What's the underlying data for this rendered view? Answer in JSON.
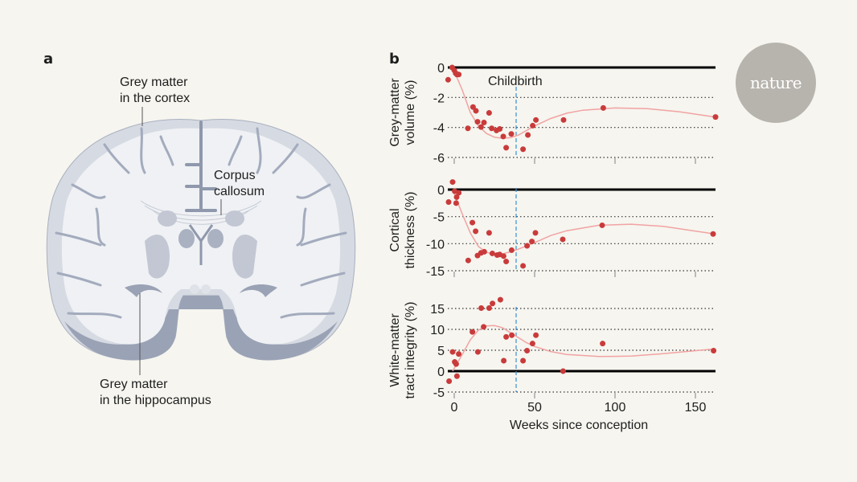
{
  "panel_a": {
    "letter": "a",
    "labels": {
      "cortex": [
        "Grey matter",
        "in the cortex"
      ],
      "corpus": [
        "Corpus",
        "callosum"
      ],
      "hippocampus": [
        "Grey matter",
        "in the hippocampus"
      ]
    },
    "colors": {
      "grey_matter": "#d6dae2",
      "white_matter": "#eff1f4",
      "dark": "#8f98ac"
    }
  },
  "panel_b": {
    "letter": "b"
  },
  "logo": {
    "text": "nature"
  },
  "colors": {
    "points": "#c93b3b",
    "trend": "#f1a3a3",
    "childbirth_line": "#3a8fd3",
    "zero_line": "#000000",
    "background": "#f6f5ef"
  },
  "chart_data": [
    {
      "type": "scatter",
      "ylabel": [
        "Grey-matter",
        "volume (%)"
      ],
      "xlim": [
        -5,
        163
      ],
      "ylim": [
        -6,
        0
      ],
      "yticks": [
        "0",
        "-2",
        "-4",
        "-6"
      ],
      "ytick_values": [
        0,
        -2,
        -4,
        -6
      ],
      "grid": "dotted horizontal",
      "annotation": {
        "text": "Childbirth",
        "x": 38.5
      },
      "points": [
        [
          -3.8,
          -0.82
        ],
        [
          -1.3,
          0
        ],
        [
          0,
          -0.18
        ],
        [
          0.9,
          -0.38
        ],
        [
          1.7,
          -0.47
        ],
        [
          2.8,
          -0.47
        ],
        [
          8.5,
          -4.06
        ],
        [
          11.7,
          -2.64
        ],
        [
          13.5,
          -2.89
        ],
        [
          14.5,
          -3.62
        ],
        [
          16.7,
          -3.97
        ],
        [
          18.5,
          -3.67
        ],
        [
          21.7,
          -3.03
        ],
        [
          23.3,
          -4.06
        ],
        [
          26.3,
          -4.2
        ],
        [
          28.3,
          -4.1
        ],
        [
          30.5,
          -4.6
        ],
        [
          32.3,
          -5.35
        ],
        [
          35.5,
          -4.43
        ],
        [
          42.8,
          -5.45
        ],
        [
          45.8,
          -4.5
        ],
        [
          48.8,
          -3.88
        ],
        [
          50.8,
          -3.5
        ],
        [
          68,
          -3.5
        ],
        [
          92.7,
          -2.7
        ],
        [
          162.5,
          -3.3
        ]
      ],
      "trend": [
        [
          -1,
          0
        ],
        [
          5,
          -1.5
        ],
        [
          10,
          -3.0
        ],
        [
          15,
          -3.9
        ],
        [
          20,
          -4.4
        ],
        [
          25,
          -4.65
        ],
        [
          30,
          -4.72
        ],
        [
          35,
          -4.68
        ],
        [
          40,
          -4.5
        ],
        [
          45,
          -4.2
        ],
        [
          50,
          -3.9
        ],
        [
          60,
          -3.4
        ],
        [
          70,
          -3.05
        ],
        [
          80,
          -2.85
        ],
        [
          100,
          -2.7
        ],
        [
          120,
          -2.75
        ],
        [
          140,
          -2.95
        ],
        [
          162,
          -3.3
        ]
      ]
    },
    {
      "type": "scatter",
      "ylabel": [
        "Cortical",
        "thickness (%)"
      ],
      "xlim": [
        -5,
        163
      ],
      "ylim": [
        -15,
        0
      ],
      "yticks": [
        "0",
        "-5",
        "-10",
        "-15"
      ],
      "ytick_values": [
        0,
        -5,
        -10,
        -15
      ],
      "grid": "dotted horizontal",
      "annotation": {
        "x": 38.5
      },
      "points": [
        [
          -3.5,
          -2.3
        ],
        [
          -1,
          1.4
        ],
        [
          0.3,
          -0.3
        ],
        [
          1.5,
          -1.4
        ],
        [
          1.2,
          -2.5
        ],
        [
          2.8,
          -0.6
        ],
        [
          8.7,
          -13.1
        ],
        [
          11.3,
          -6.1
        ],
        [
          13.3,
          -7.7
        ],
        [
          14.5,
          -12.2
        ],
        [
          16.7,
          -11.7
        ],
        [
          18.7,
          -11.5
        ],
        [
          21.7,
          -8.0
        ],
        [
          23.7,
          -11.8
        ],
        [
          26.7,
          -12.1
        ],
        [
          28.3,
          -12.0
        ],
        [
          30.7,
          -12.3
        ],
        [
          32.3,
          -13.3
        ],
        [
          35.7,
          -11.2
        ],
        [
          42.8,
          -14.1
        ],
        [
          45.3,
          -10.4
        ],
        [
          48.3,
          -9.6
        ],
        [
          50.5,
          -8.0
        ],
        [
          67.5,
          -9.2
        ],
        [
          92,
          -6.6
        ],
        [
          161,
          -8.2
        ]
      ],
      "trend": [
        [
          -1,
          0
        ],
        [
          5,
          -4.5
        ],
        [
          10,
          -8
        ],
        [
          15,
          -10.5
        ],
        [
          20,
          -11.6
        ],
        [
          25,
          -12
        ],
        [
          30,
          -11.9
        ],
        [
          35,
          -11.5
        ],
        [
          40,
          -11
        ],
        [
          50,
          -9.8
        ],
        [
          60,
          -8.5
        ],
        [
          70,
          -7.6
        ],
        [
          90,
          -6.6
        ],
        [
          110,
          -6.4
        ],
        [
          130,
          -6.8
        ],
        [
          162,
          -8.2
        ]
      ]
    },
    {
      "type": "scatter",
      "ylabel": [
        "White-matter",
        "tract integrity (%)"
      ],
      "xlabel": "Weeks since conception",
      "xlim": [
        -5,
        163
      ],
      "ylim": [
        -5,
        15
      ],
      "yticks": [
        "15",
        "10",
        "5",
        "0",
        "-5"
      ],
      "ytick_values": [
        15,
        10,
        5,
        0,
        -5
      ],
      "xticks": [
        "0",
        "50",
        "100",
        "150"
      ],
      "xtick_values": [
        0,
        50,
        100,
        150
      ],
      "grid": "dotted horizontal",
      "annotation": {
        "x": 38.5
      },
      "points": [
        [
          -3.2,
          -2.4
        ],
        [
          -1,
          4.6
        ],
        [
          0.3,
          2.2
        ],
        [
          1.2,
          1.7
        ],
        [
          1.7,
          -1.2
        ],
        [
          2.8,
          4.1
        ],
        [
          11.3,
          9.4
        ],
        [
          14.7,
          4.6
        ],
        [
          16.8,
          15.1
        ],
        [
          18.3,
          10.6
        ],
        [
          21.7,
          15.1
        ],
        [
          23.8,
          16.2
        ],
        [
          28.7,
          17.1
        ],
        [
          30.8,
          2.5
        ],
        [
          32.3,
          8.2
        ],
        [
          35.8,
          8.6
        ],
        [
          42.8,
          2.5
        ],
        [
          45.3,
          4.9
        ],
        [
          48.7,
          6.6
        ],
        [
          50.8,
          8.6
        ],
        [
          67.7,
          0
        ],
        [
          92.3,
          6.6
        ],
        [
          161.3,
          4.9
        ]
      ],
      "trend": [
        [
          -1,
          0
        ],
        [
          5,
          4
        ],
        [
          10,
          7.5
        ],
        [
          15,
          9.8
        ],
        [
          20,
          10.8
        ],
        [
          25,
          10.9
        ],
        [
          30,
          10.4
        ],
        [
          35,
          9.2
        ],
        [
          40,
          8
        ],
        [
          45,
          6.8
        ],
        [
          50,
          5.9
        ],
        [
          60,
          4.7
        ],
        [
          70,
          4
        ],
        [
          90,
          3.5
        ],
        [
          110,
          3.6
        ],
        [
          130,
          4.2
        ],
        [
          162,
          5.3
        ]
      ]
    }
  ]
}
